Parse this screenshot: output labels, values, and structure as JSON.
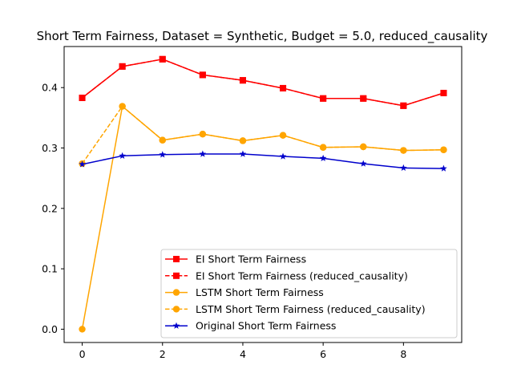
{
  "chart_data": {
    "type": "line",
    "title": "Short Term Fairness, Dataset = Synthetic, Budget = 5.0, reduced_causality",
    "xlabel": "",
    "ylabel": "",
    "x": [
      0,
      1,
      2,
      3,
      4,
      5,
      6,
      7,
      8,
      9
    ],
    "xlim": [
      -0.45,
      9.45
    ],
    "ylim": [
      -0.022,
      0.468
    ],
    "xticks": [
      0,
      2,
      4,
      6,
      8
    ],
    "yticks": [
      0.0,
      0.1,
      0.2,
      0.3,
      0.4
    ],
    "grid": false,
    "legend_position": "lower-right",
    "series": [
      {
        "name": "EI Short Term Fairness",
        "color": "#ff0000",
        "linestyle": "solid",
        "marker": "square",
        "values": [
          0.383,
          0.435,
          0.447,
          0.421,
          0.412,
          0.399,
          0.382,
          0.382,
          0.37,
          0.391
        ]
      },
      {
        "name": "EI Short Term Fairness (reduced_causality)",
        "color": "#ff0000",
        "linestyle": "dashed",
        "marker": "square",
        "values": [
          0.383,
          0.435,
          0.447,
          0.421,
          0.412,
          0.399,
          0.382,
          0.382,
          0.37,
          0.391
        ]
      },
      {
        "name": "LSTM Short Term Fairness",
        "color": "#ffa500",
        "linestyle": "solid",
        "marker": "circle",
        "values": [
          0.0,
          0.369,
          0.313,
          0.323,
          0.312,
          0.321,
          0.301,
          0.302,
          0.296,
          0.297
        ]
      },
      {
        "name": "LSTM Short Term Fairness (reduced_causality)",
        "color": "#ffa500",
        "linestyle": "dashed",
        "marker": "circle",
        "values": [
          0.274,
          0.369,
          0.313,
          0.323,
          0.312,
          0.321,
          0.301,
          0.302,
          0.296,
          0.297
        ]
      },
      {
        "name": "Original Short Term Fairness",
        "color": "#0000cc",
        "linestyle": "solid",
        "marker": "star",
        "values": [
          0.273,
          0.287,
          0.289,
          0.29,
          0.29,
          0.286,
          0.283,
          0.274,
          0.267,
          0.266
        ]
      }
    ]
  }
}
